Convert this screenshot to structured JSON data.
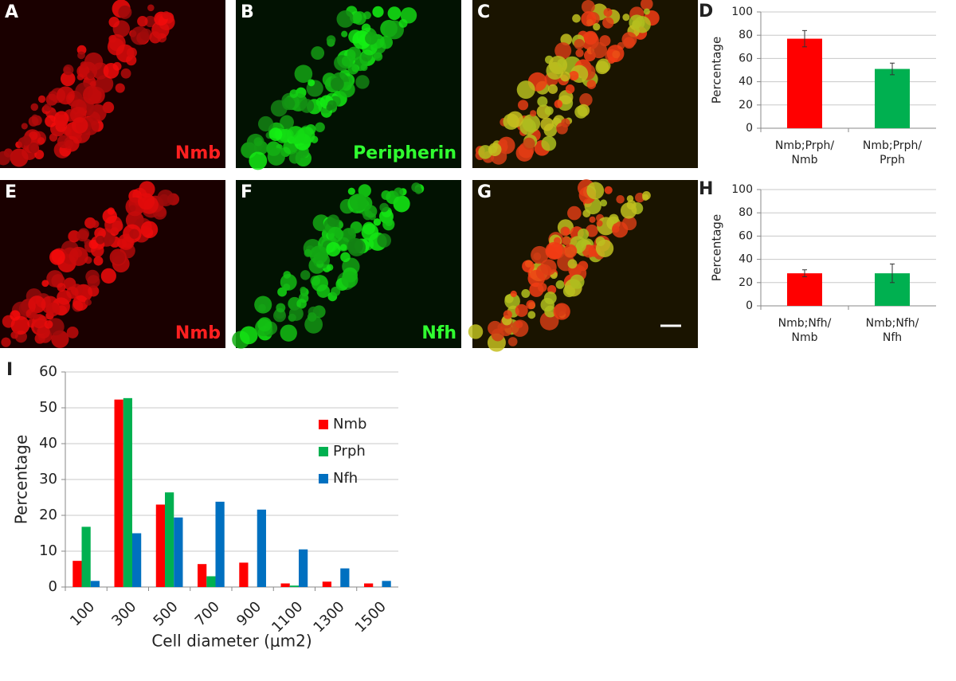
{
  "panels": [
    {
      "letter": "A",
      "label": "Nmb"
    },
    {
      "letter": "B",
      "label": "Peripherin"
    },
    {
      "letter": "C"
    },
    {
      "letter": "E",
      "label": "Nmb"
    },
    {
      "letter": "F",
      "label": "Nfh"
    },
    {
      "letter": "G"
    }
  ],
  "chart_data": [
    {
      "type": "bar",
      "panel_label": "D",
      "y_label": "Percentage",
      "categories": [
        "Nmb;Prph/\nNmb",
        "Nmb;Prph/\nPrph"
      ],
      "series": [
        {
          "colors": [
            "#ff0000",
            "#00b050"
          ],
          "values": [
            77,
            51
          ],
          "errors": [
            7,
            5
          ]
        }
      ],
      "ylim": [
        0,
        100
      ],
      "yticks": [
        0,
        20,
        40,
        60,
        80,
        100
      ],
      "grid": true
    },
    {
      "type": "bar",
      "panel_label": "H",
      "y_label": "Percentage",
      "categories": [
        "Nmb;Nfh/\nNmb",
        "Nmb;Nfh/\nNfh"
      ],
      "series": [
        {
          "colors": [
            "#ff0000",
            "#00b050"
          ],
          "values": [
            28,
            28
          ],
          "errors": [
            3,
            8
          ]
        }
      ],
      "ylim": [
        0,
        100
      ],
      "yticks": [
        0,
        20,
        40,
        60,
        80,
        100
      ],
      "grid": true
    },
    {
      "type": "bar",
      "panel_label": "I",
      "y_label": "Percentage",
      "x_label": "Cell diameter (μm2)",
      "categories": [
        "100",
        "300",
        "500",
        "700",
        "900",
        "1100",
        "1300",
        "1500"
      ],
      "series": [
        {
          "name": "Nmb",
          "color": "#ff0000",
          "values": [
            7.3,
            52.3,
            23,
            6.4,
            6.8,
            1,
            1.5,
            1
          ]
        },
        {
          "name": "Prph",
          "color": "#00b050",
          "values": [
            16.8,
            52.7,
            26.4,
            3,
            0,
            0.4,
            0,
            0
          ]
        },
        {
          "name": "Nfh",
          "color": "#0070c0",
          "values": [
            1.7,
            15,
            19.4,
            23.8,
            21.6,
            10.5,
            5.2,
            1.7
          ]
        }
      ],
      "ylim": [
        0,
        60
      ],
      "yticks": [
        0,
        10,
        20,
        30,
        40,
        50,
        60
      ],
      "grid": true,
      "legend": "upper-right"
    }
  ]
}
